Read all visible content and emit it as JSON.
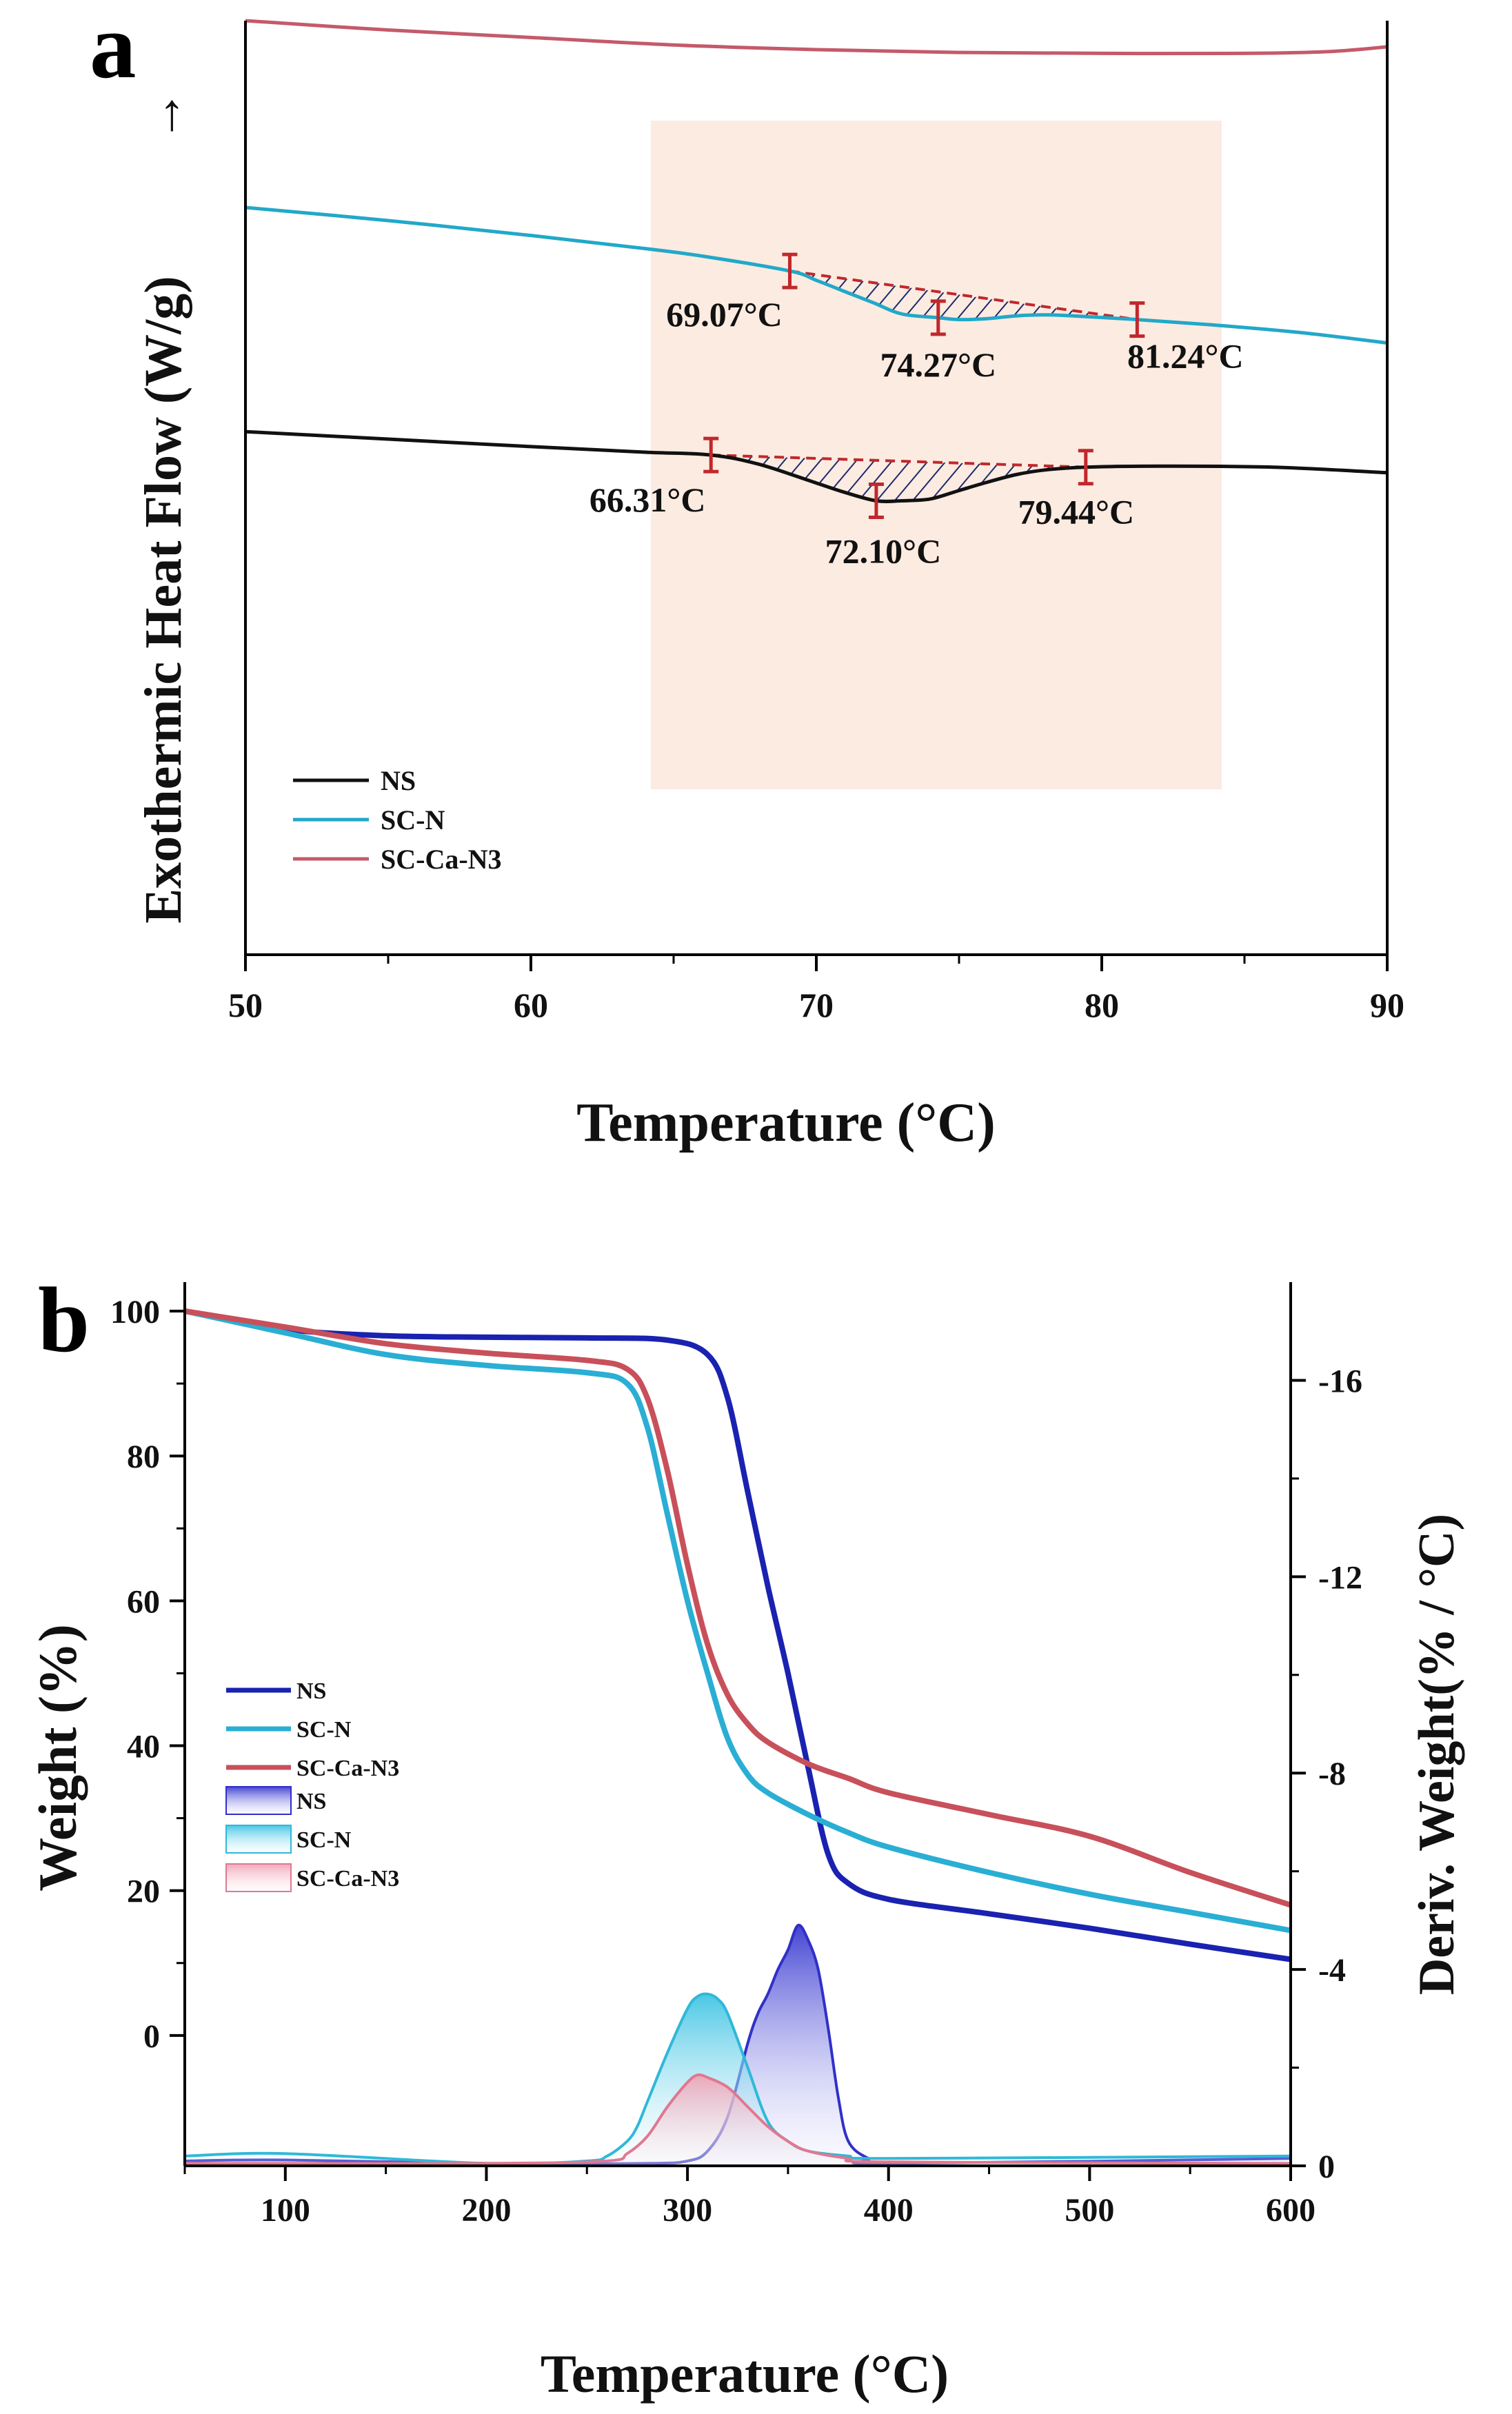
{
  "chart_data": [
    {
      "panel": "a",
      "type": "line",
      "xlabel": "Temperature (°C)",
      "ylabel": "Exothermic Heat Flow (W/g)",
      "ylabel_arrow": "→",
      "xlim": [
        50,
        90
      ],
      "ylim": [
        0,
        10
      ],
      "x_ticks": [
        "50",
        "60",
        "70",
        "80",
        "90"
      ],
      "highlight_range": [
        64.2,
        84.2
      ],
      "legend": {
        "placement": "bottom-left"
      },
      "series": [
        {
          "name": "NS",
          "color": "#111111",
          "x": [
            50,
            55,
            60,
            64,
            66.31,
            68,
            70,
            71,
            72.1,
            73,
            74,
            75,
            76,
            77,
            78,
            79.44,
            82,
            86,
            90
          ],
          "y": [
            5.6,
            5.52,
            5.44,
            5.38,
            5.35,
            5.25,
            5.05,
            4.95,
            4.86,
            4.86,
            4.88,
            4.97,
            5.06,
            5.14,
            5.19,
            5.22,
            5.23,
            5.22,
            5.16
          ]
        },
        {
          "name": "SC-N",
          "color": "#22a8c8",
          "x": [
            50,
            55,
            60,
            64,
            66,
            69.07,
            70,
            71,
            72,
            73,
            74.27,
            75,
            76,
            77,
            78,
            79,
            81.24,
            84,
            87,
            90
          ],
          "y": [
            8.0,
            7.86,
            7.7,
            7.56,
            7.48,
            7.32,
            7.22,
            7.1,
            6.98,
            6.86,
            6.82,
            6.8,
            6.81,
            6.84,
            6.85,
            6.84,
            6.8,
            6.74,
            6.66,
            6.55
          ]
        },
        {
          "name": "SC-Ca-N3",
          "color": "#c45a6a",
          "x": [
            50,
            55,
            60,
            65,
            70,
            75,
            80,
            85,
            88,
            90
          ],
          "y": [
            10.0,
            9.9,
            9.82,
            9.74,
            9.69,
            9.66,
            9.65,
            9.65,
            9.67,
            9.72
          ]
        }
      ],
      "annotations": [
        {
          "label": "69.07°C",
          "x": 69.07,
          "series": "SC-N"
        },
        {
          "label": "74.27°C",
          "x": 74.27,
          "series": "SC-N"
        },
        {
          "label": "81.24°C",
          "x": 81.24,
          "series": "SC-N"
        },
        {
          "label": "66.31°C",
          "x": 66.31,
          "series": "NS"
        },
        {
          "label": "72.10°C",
          "x": 72.1,
          "series": "NS"
        },
        {
          "label": "79.44°C",
          "x": 79.44,
          "series": "NS"
        }
      ],
      "annotation_color": "#c0282c",
      "hatch_color": "#1c2a6b"
    },
    {
      "panel": "b",
      "type": "area",
      "xlabel": "Temperature (°C)",
      "ylabel_left": "Weight (%)",
      "ylabel_right": "Deriv. Weight(% / °C)",
      "xlim": [
        50,
        600
      ],
      "ylim_left": [
        -18,
        104
      ],
      "ylim_right": [
        0,
        -18
      ],
      "x_ticks": [
        "100",
        "200",
        "300",
        "400",
        "500",
        "600"
      ],
      "y_ticks_left": [
        "0",
        "20",
        "40",
        "60",
        "80",
        "100"
      ],
      "y_ticks_right": [
        "0",
        "-4",
        "-8",
        "-12",
        "-16"
      ],
      "legend": {
        "placement": "middle-left"
      },
      "weight_series": [
        {
          "name": "NS",
          "color": "#1a22b0",
          "x": [
            50,
            100,
            150,
            200,
            250,
            290,
            310,
            320,
            330,
            340,
            350,
            360,
            370,
            380,
            400,
            450,
            500,
            550,
            600
          ],
          "y": [
            100,
            97.5,
            96.6,
            96.4,
            96.3,
            96,
            94,
            88,
            75,
            62,
            50,
            37,
            25,
            21,
            18.8,
            16.8,
            14.8,
            12.6,
            10.5
          ]
        },
        {
          "name": "SC-N",
          "color": "#2aaed4",
          "x": [
            50,
            100,
            150,
            200,
            250,
            270,
            280,
            290,
            300,
            310,
            320,
            330,
            340,
            360,
            380,
            400,
            450,
            500,
            550,
            600
          ],
          "y": [
            100,
            97,
            94,
            92.5,
            91.5,
            90,
            84,
            72,
            60,
            50,
            41,
            36,
            33.5,
            30.5,
            28,
            26,
            22.5,
            19.5,
            17,
            14.5
          ]
        },
        {
          "name": "SC-Ca-N3",
          "color": "#c8505a",
          "x": [
            50,
            100,
            150,
            200,
            250,
            270,
            280,
            290,
            300,
            310,
            320,
            330,
            340,
            360,
            380,
            400,
            450,
            500,
            550,
            600
          ],
          "y": [
            100,
            97.8,
            95.5,
            94.2,
            93.2,
            92,
            88,
            78,
            65,
            54,
            47,
            43,
            40.5,
            37.5,
            35.5,
            33.5,
            30.5,
            27.5,
            22.5,
            18
          ]
        }
      ],
      "deriv_series": [
        {
          "name": "NS",
          "color": "#3030c8",
          "x": [
            50,
            100,
            200,
            280,
            300,
            310,
            320,
            330,
            335,
            340,
            345,
            350,
            355,
            360,
            365,
            370,
            375,
            380,
            390,
            400,
            600
          ],
          "y": [
            0.1,
            0.12,
            0.05,
            0.05,
            0.1,
            0.3,
            1.0,
            2.5,
            3.1,
            3.5,
            4.0,
            4.4,
            4.9,
            4.6,
            4.0,
            2.8,
            1.4,
            0.5,
            0.15,
            0.05,
            0.15
          ]
        },
        {
          "name": "SC-N",
          "color": "#30b8d8",
          "x": [
            50,
            100,
            200,
            250,
            260,
            270,
            275,
            280,
            290,
            300,
            305,
            310,
            315,
            320,
            330,
            340,
            350,
            360,
            380,
            400,
            600
          ],
          "y": [
            0.2,
            0.25,
            0.05,
            0.1,
            0.2,
            0.5,
            0.8,
            1.3,
            2.3,
            3.2,
            3.45,
            3.5,
            3.4,
            3.1,
            2.0,
            0.9,
            0.5,
            0.3,
            0.2,
            0.15,
            0.2
          ]
        },
        {
          "name": "SC-Ca-N3",
          "color": "#e07890",
          "x": [
            50,
            100,
            200,
            260,
            270,
            280,
            290,
            300,
            305,
            310,
            320,
            330,
            340,
            350,
            360,
            380,
            400,
            600
          ],
          "y": [
            0.05,
            0.05,
            0.05,
            0.1,
            0.25,
            0.6,
            1.2,
            1.7,
            1.85,
            1.8,
            1.6,
            1.2,
            0.8,
            0.5,
            0.3,
            0.15,
            0.08,
            0.05
          ]
        }
      ]
    }
  ]
}
